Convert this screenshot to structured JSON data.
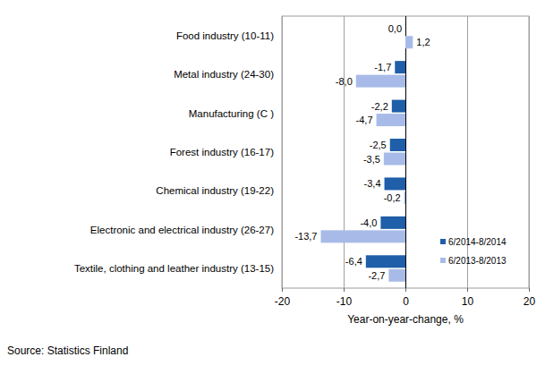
{
  "chart_data": {
    "type": "bar",
    "orientation": "horizontal",
    "categories": [
      "Food industry (10-11)",
      "Metal industry (24-30)",
      "Manufacturing (C )",
      "Forest industry (16-17)",
      "Chemical industry (19-22)",
      "Electronic and electrical industry (26-27)",
      "Textile, clothing and leather industry (13-15)"
    ],
    "series": [
      {
        "name": "6/2014-8/2014",
        "color": "#1f5ea8",
        "values": [
          0.0,
          -1.7,
          -2.2,
          -2.5,
          -3.4,
          -4.0,
          -6.4
        ],
        "value_labels": [
          "0,0",
          "-1,7",
          "-2,2",
          "-2,5",
          "-3,4",
          "-4,0",
          "-6,4"
        ]
      },
      {
        "name": "6/2013-8/2013",
        "color": "#a8bbe8",
        "values": [
          1.2,
          -8.0,
          -4.7,
          -3.5,
          -0.2,
          -13.7,
          -2.7
        ],
        "value_labels": [
          "1,2",
          "-8,0",
          "-4,7",
          "-3,5",
          "-0,2",
          "-13,7",
          "-2,7"
        ]
      }
    ],
    "x_label": "Year-on-year-change, %",
    "xlim": [
      -20,
      20
    ],
    "xticks": [
      -20,
      -10,
      0,
      10,
      20
    ],
    "grid": true,
    "legend": "lower right",
    "data_labels": true,
    "annotations": [
      "Source: Statistics Finland"
    ]
  }
}
